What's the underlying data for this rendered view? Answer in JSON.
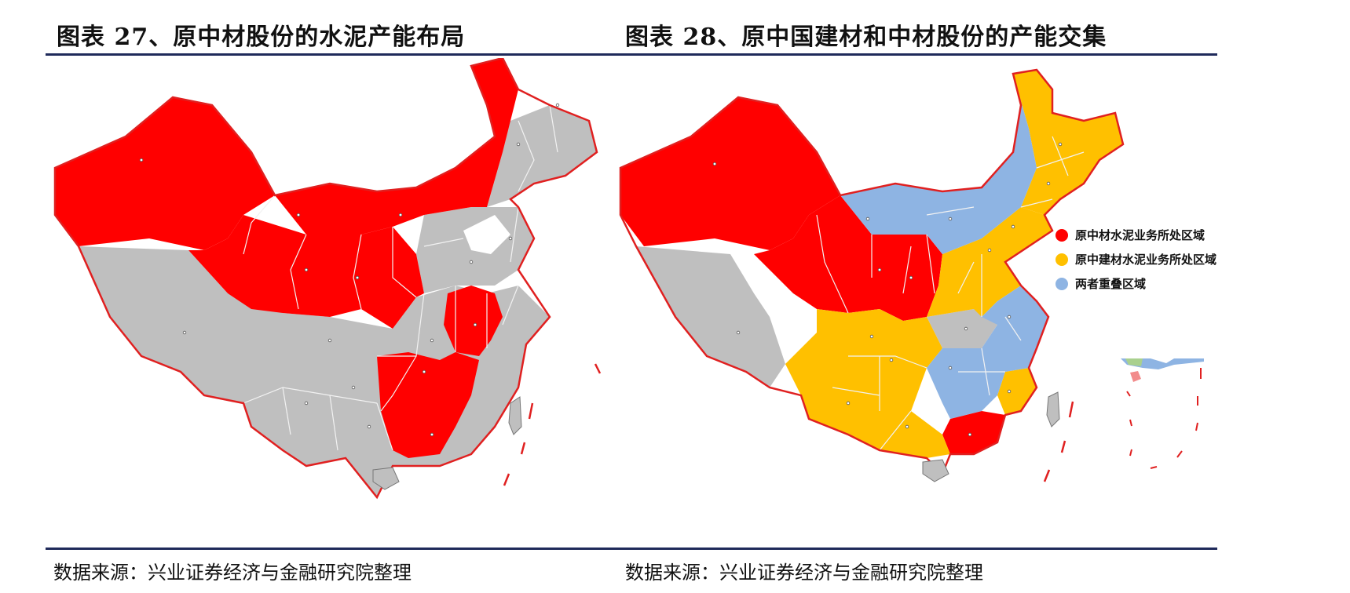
{
  "colors": {
    "red": "#ff0000",
    "gray": "#bfbfbf",
    "yellow": "#ffc000",
    "blue": "#8eb4e3",
    "border": "#e02020",
    "rule": "#1f2a5a",
    "provinceLine": "#f2f2f2"
  },
  "figure27": {
    "title": "图表 27、原中材股份的水泥产能布局",
    "source": "数据来源：兴业证券经济与金融研究院整理"
  },
  "figure28": {
    "title": "图表 28、原中国建材和中材股份的产能交集",
    "source": "数据来源：兴业证券经济与金融研究院整理",
    "legend": [
      {
        "label": "原中材水泥业务所处区域",
        "color": "#ff0000"
      },
      {
        "label": "原中建材水泥业务所处区域",
        "color": "#ffc000"
      },
      {
        "label": "两者重叠区域",
        "color": "#8eb4e3"
      }
    ]
  },
  "icons": [
    "map-of-china-icon",
    "island-taiwan-icon",
    "island-hainan-icon",
    "south-china-sea-inset-icon"
  ]
}
